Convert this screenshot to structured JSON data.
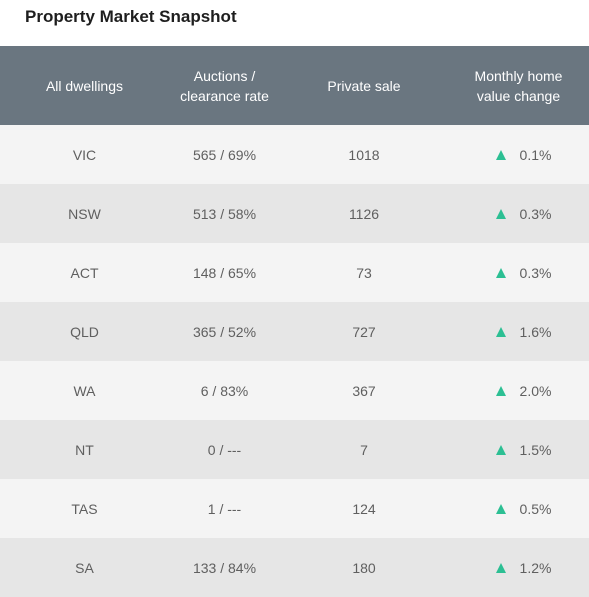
{
  "title": "Property Market Snapshot",
  "headers": {
    "dwellings": "All dwellings",
    "auctions_line1": "Auctions /",
    "auctions_line2": "clearance rate",
    "private": "Private sale",
    "monthly_line1": "Monthly home",
    "monthly_line2": "value change"
  },
  "colors": {
    "header_bg": "#6a7680",
    "up_arrow": "#2cbf93"
  },
  "rows": [
    {
      "state": "VIC",
      "auctions": "565 / 69%",
      "private": "1018",
      "change": "0.1%",
      "direction": "up-arrow-icon"
    },
    {
      "state": "NSW",
      "auctions": "513 / 58%",
      "private": "1126",
      "change": "0.3%",
      "direction": "up-arrow-icon"
    },
    {
      "state": "ACT",
      "auctions": "148 / 65%",
      "private": "73",
      "change": "0.3%",
      "direction": "up-arrow-icon"
    },
    {
      "state": "QLD",
      "auctions": "365 / 52%",
      "private": "727",
      "change": "1.6%",
      "direction": "up-arrow-icon"
    },
    {
      "state": "WA",
      "auctions": "6 / 83%",
      "private": "367",
      "change": "2.0%",
      "direction": "up-arrow-icon"
    },
    {
      "state": "NT",
      "auctions": "0 / ---",
      "private": "7",
      "change": "1.5%",
      "direction": "up-arrow-icon"
    },
    {
      "state": "TAS",
      "auctions": "1 / ---",
      "private": "124",
      "change": "0.5%",
      "direction": "up-arrow-icon"
    },
    {
      "state": "SA",
      "auctions": "133 / 84%",
      "private": "180",
      "change": "1.2%",
      "direction": "up-arrow-icon"
    }
  ]
}
